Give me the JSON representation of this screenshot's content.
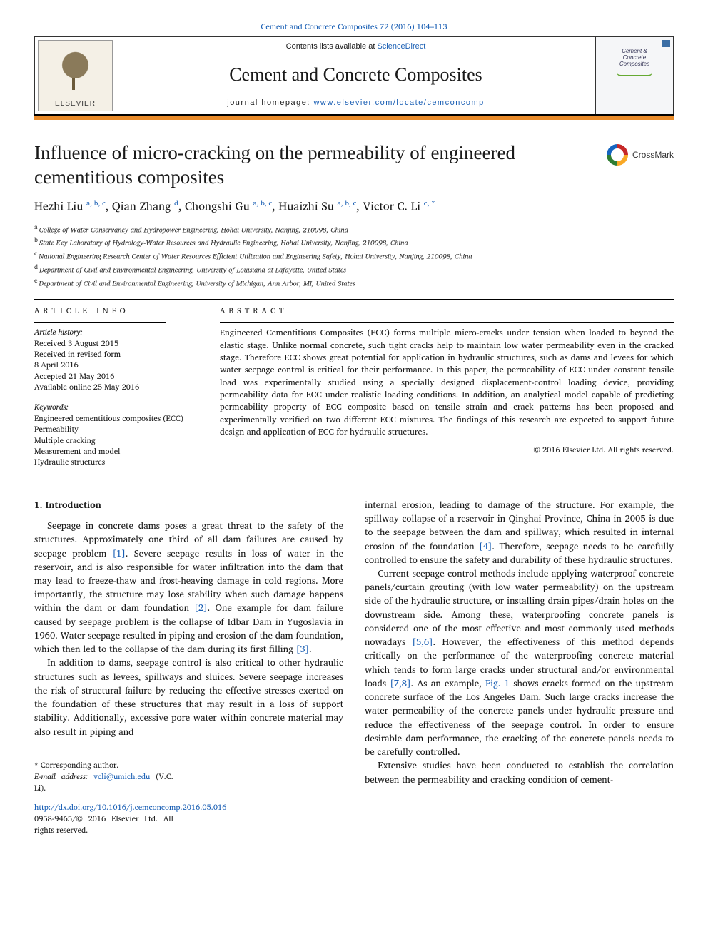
{
  "header": {
    "top_citation_pre": "Cement and Concrete Composites 72 (2016) 104",
    "top_citation_dash": "–",
    "top_citation_post": "113",
    "contents_pre": "Contents lists available at ",
    "contents_link": "ScienceDirect",
    "journal_title": "Cement and Concrete Composites",
    "homepage_pre": "journal homepage: ",
    "homepage_link": "www.elsevier.com/locate/cemconcomp",
    "publisher_label": "ELSEVIER",
    "cover_title_1": "Cement &",
    "cover_title_2": "Concrete",
    "cover_title_3": "Composites"
  },
  "crossmark_label": "CrossMark",
  "title": "Influence of micro-cracking on the permeability of engineered cementitious composites",
  "authors_html": "Hezhi Liu <sup>a, b, c</sup>, Qian Zhang <sup>d</sup>, Chongshi Gu <sup>a, b, c</sup>, Huaizhi Su <sup>a, b, c</sup>, Victor C. Li <sup>e, *</sup>",
  "affiliations": {
    "a": "College of Water Conservancy and Hydropower Engineering, Hohai University, Nanjing, 210098, China",
    "b": "State Key Laboratory of Hydrology-Water Resources and Hydraulic Engineering, Hohai University, Nanjing, 210098, China",
    "c": "National Engineering Research Center of Water Resources Efficient Utilization and Engineering Safety, Hohai University, Nanjing, 210098, China",
    "d": "Department of Civil and Environmental Engineering, University of Louisiana at Lafayette, United States",
    "e": "Department of Civil and Environmental Engineering, University of Michigan, Ann Arbor, MI, United States"
  },
  "article_info": {
    "head": "ARTICLE INFO",
    "history_label": "Article history:",
    "received": "Received 3 August 2015",
    "revised": "Received in revised form",
    "revised_date": "8 April 2016",
    "accepted": "Accepted 21 May 2016",
    "online": "Available online 25 May 2016",
    "keywords_label": "Keywords:",
    "keywords": [
      "Engineered cementitious composites (ECC)",
      "Permeability",
      "Multiple cracking",
      "Measurement and model",
      "Hydraulic structures"
    ]
  },
  "abstract": {
    "head": "ABSTRACT",
    "text": "Engineered Cementitious Composites (ECC) forms multiple micro-cracks under tension when loaded to beyond the elastic stage. Unlike normal concrete, such tight cracks help to maintain low water permeability even in the cracked stage. Therefore ECC shows great potential for application in hydraulic structures, such as dams and levees for which water seepage control is critical for their performance. In this paper, the permeability of ECC under constant tensile load was experimentally studied using a specially designed displacement-control loading device, providing permeability data for ECC under realistic loading conditions. In addition, an analytical model capable of predicting permeability property of ECC composite based on tensile strain and crack patterns has been proposed and experimentally verified on two different ECC mixtures. The findings of this research are expected to support future design and application of ECC for hydraulic structures.",
    "copyright": "© 2016 Elsevier Ltd. All rights reserved."
  },
  "section1": {
    "heading": "1. Introduction",
    "col1_p1": "Seepage in concrete dams poses a great threat to the safety of the structures. Approximately one third of all dam failures are caused by seepage problem [1]. Severe seepage results in loss of water in the reservoir, and is also responsible for water infiltration into the dam that may lead to freeze-thaw and frost-heaving damage in cold regions. More importantly, the structure may lose stability when such damage happens within the dam or dam foundation [2]. One example for dam failure caused by seepage problem is the collapse of Idbar Dam in Yugoslavia in 1960. Water seepage resulted in piping and erosion of the dam foundation, which then led to the collapse of the dam during its first filling [3].",
    "col1_p2": "In addition to dams, seepage control is also critical to other hydraulic structures such as levees, spillways and sluices. Severe seepage increases the risk of structural failure by reducing the effective stresses exerted on the foundation of these structures that may result in a loss of support stability. Additionally, excessive pore water within concrete material may also result in piping and",
    "col2_p1": "internal erosion, leading to damage of the structure. For example, the spillway collapse of a reservoir in Qinghai Province, China in 2005 is due to the seepage between the dam and spillway, which resulted in internal erosion of the foundation [4]. Therefore, seepage needs to be carefully controlled to ensure the safety and durability of these hydraulic structures.",
    "col2_p2": "Current seepage control methods include applying waterproof concrete panels/curtain grouting (with low water permeability) on the upstream side of the hydraulic structure, or installing drain pipes/drain holes on the downstream side. Among these, waterproofing concrete panels is considered one of the most effective and most commonly used methods nowadays [5,6]. However, the effectiveness of this method depends critically on the performance of the waterproofing concrete material which tends to form large cracks under structural and/or environmental loads [7,8]. As an example, Fig. 1 shows cracks formed on the upstream concrete surface of the Los Angeles Dam. Such large cracks increase the water permeability of the concrete panels under hydraulic pressure and reduce the effectiveness of the seepage control. In order to ensure desirable dam performance, the cracking of the concrete panels needs to be carefully controlled.",
    "col2_p3": "Extensive studies have been conducted to establish the correlation between the permeability and cracking condition of cement-"
  },
  "footer": {
    "corresponding": "* Corresponding author.",
    "email_label": "E-mail address: ",
    "email": "vcli@umich.edu",
    "email_attr": " (V.C. Li).",
    "doi": "http://dx.doi.org/10.1016/j.cemconcomp.2016.05.016",
    "issn_line": "0958-9465/© 2016 Elsevier Ltd. All rights reserved."
  },
  "colors": {
    "link": "#1a5fb4",
    "orange_bar": "#e98b2a",
    "text": "#1a1a1a"
  }
}
